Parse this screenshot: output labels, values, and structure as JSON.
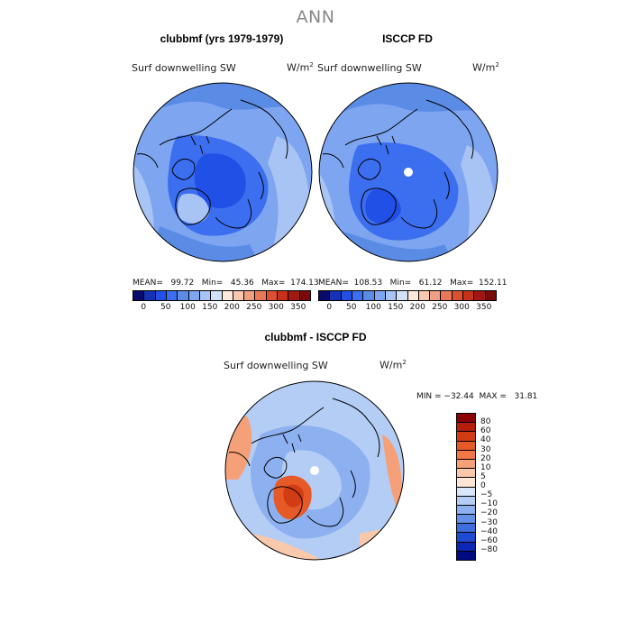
{
  "main_title": "ANN",
  "panels": [
    {
      "title": "clubbmf (yrs 1979-1979)",
      "variable": "Surf downwelling SW",
      "units": "W/m",
      "units_exp": "2",
      "stats": "MEAN=   99.72   Min=   45.36   Max=  174.13"
    },
    {
      "title": "ISCCP FD",
      "variable": "Surf downwelling SW",
      "units": "W/m",
      "units_exp": "2",
      "stats": "MEAN=  108.53   Min=   61.12   Max=  152.11"
    },
    {
      "title": "clubbmf - ISCCP FD",
      "variable": "Surf downwelling SW",
      "units": "W/m",
      "units_exp": "2",
      "stats": "MIN = −32.44  MAX =   31.81"
    }
  ],
  "colorbar_abs": {
    "ticks": [
      "0",
      "50",
      "100",
      "150",
      "200",
      "250",
      "300",
      "350"
    ],
    "colors": [
      "#0a0a6e",
      "#1432b4",
      "#2050e6",
      "#3c6ef0",
      "#5a8ce6",
      "#7ea5f0",
      "#a8c4f5",
      "#d2e1fa",
      "#fde8dc",
      "#f8c8b0",
      "#f0a080",
      "#e87858",
      "#dc5030",
      "#c83018",
      "#a01810",
      "#7a0a0a"
    ]
  },
  "colorbar_diff": {
    "labels": [
      "80",
      "60",
      "40",
      "30",
      "20",
      "10",
      "5",
      "0",
      "−5",
      "−10",
      "−20",
      "−30",
      "−40",
      "−60",
      "−80"
    ],
    "colors": [
      "#8b0000",
      "#b41e0a",
      "#d23c14",
      "#e65a28",
      "#f07846",
      "#f5a078",
      "#fac8aa",
      "#fde6d6",
      "#d7e6fa",
      "#b4cdf5",
      "#8cb0f0",
      "#6490e6",
      "#3c6ede",
      "#1e4bd2",
      "#0a28b4",
      "#000a82"
    ]
  }
}
